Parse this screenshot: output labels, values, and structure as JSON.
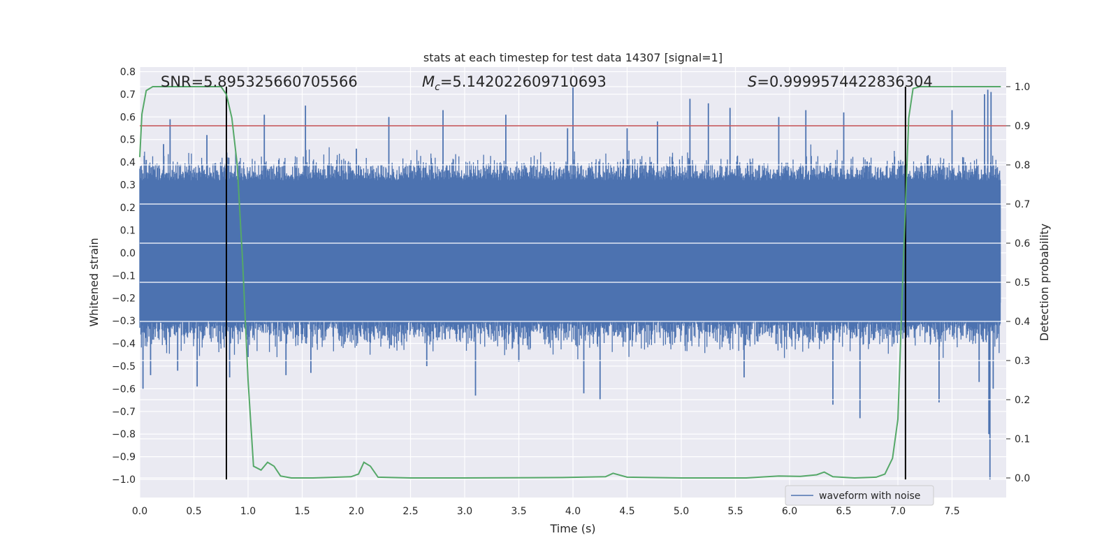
{
  "chart_data": {
    "type": "line",
    "title": "stats at each timestep for test data 14307 [signal=1]",
    "xlabel": "Time (s)",
    "ylabel": "Whitened strain",
    "y2label": "Detection probability",
    "xlim": [
      0.0,
      8.0
    ],
    "ylim": [
      -1.08,
      0.82
    ],
    "y2lim": [
      -0.05,
      1.05
    ],
    "xticks": [
      "0.0",
      "0.5",
      "1.0",
      "1.5",
      "2.0",
      "2.5",
      "3.0",
      "3.5",
      "4.0",
      "4.5",
      "5.0",
      "5.5",
      "6.0",
      "6.5",
      "7.0",
      "7.5"
    ],
    "yticks": [
      "0.8",
      "0.7",
      "0.6",
      "0.5",
      "0.4",
      "0.3",
      "0.2",
      "0.1",
      "0.0",
      "−0.1",
      "−0.2",
      "−0.3",
      "−0.4",
      "−0.5",
      "−0.6",
      "−0.7",
      "−0.8",
      "−0.9",
      "−1.0"
    ],
    "y2ticks": [
      "1.0",
      "0.9",
      "0.8",
      "0.7",
      "0.6",
      "0.5",
      "0.4",
      "0.3",
      "0.2",
      "0.1",
      "0.0"
    ],
    "grid": true,
    "legend_placement": "lower-right",
    "annotations": {
      "snr": "SNR=5.895325660705566",
      "mc_symbol": "M",
      "mc_sub": "c",
      "mc_value": "=5.142022609710693",
      "s_symbol": "S",
      "s_value": "=0.9999574422836304"
    },
    "series": [
      {
        "name": "waveform with noise",
        "color": "#4c72b0",
        "description_values": "dense noise signal; core band approx ±0.3, spikes up to 0.73 and down to -1.0",
        "spikes": [
          {
            "x": 0.03,
            "y": -0.6
          },
          {
            "x": 0.06,
            "y": 0.41
          },
          {
            "x": 0.1,
            "y": -0.54
          },
          {
            "x": 0.22,
            "y": 0.48
          },
          {
            "x": 0.28,
            "y": 0.59
          },
          {
            "x": 0.35,
            "y": -0.52
          },
          {
            "x": 0.53,
            "y": -0.59
          },
          {
            "x": 0.62,
            "y": 0.52
          },
          {
            "x": 0.83,
            "y": -0.55
          },
          {
            "x": 1.0,
            "y": -0.46
          },
          {
            "x": 1.15,
            "y": 0.61
          },
          {
            "x": 1.35,
            "y": -0.54
          },
          {
            "x": 1.53,
            "y": 0.65
          },
          {
            "x": 1.58,
            "y": -0.53
          },
          {
            "x": 2.0,
            "y": 0.46
          },
          {
            "x": 2.3,
            "y": 0.6
          },
          {
            "x": 2.65,
            "y": -0.5
          },
          {
            "x": 2.8,
            "y": 0.63
          },
          {
            "x": 3.1,
            "y": -0.63
          },
          {
            "x": 3.38,
            "y": 0.61
          },
          {
            "x": 3.5,
            "y": -0.48
          },
          {
            "x": 3.95,
            "y": 0.55
          },
          {
            "x": 4.0,
            "y": 0.73
          },
          {
            "x": 4.1,
            "y": -0.62
          },
          {
            "x": 4.25,
            "y": -0.65
          },
          {
            "x": 4.5,
            "y": 0.55
          },
          {
            "x": 4.78,
            "y": 0.58
          },
          {
            "x": 5.08,
            "y": 0.68
          },
          {
            "x": 5.25,
            "y": 0.66
          },
          {
            "x": 5.45,
            "y": 0.64
          },
          {
            "x": 5.58,
            "y": -0.55
          },
          {
            "x": 5.9,
            "y": 0.6
          },
          {
            "x": 6.15,
            "y": 0.63
          },
          {
            "x": 6.4,
            "y": -0.67
          },
          {
            "x": 6.5,
            "y": 0.62
          },
          {
            "x": 6.65,
            "y": -0.73
          },
          {
            "x": 7.38,
            "y": -0.66
          },
          {
            "x": 7.5,
            "y": 0.63
          },
          {
            "x": 7.75,
            "y": -0.57
          },
          {
            "x": 7.8,
            "y": 0.7
          },
          {
            "x": 7.83,
            "y": 0.72
          },
          {
            "x": 7.84,
            "y": -0.8
          },
          {
            "x": 7.85,
            "y": -1.0
          },
          {
            "x": 7.86,
            "y": 0.71
          },
          {
            "x": 7.88,
            "y": -0.6
          }
        ]
      },
      {
        "name": "",
        "color": "#55a868",
        "axis": "y2",
        "points": [
          [
            0.0,
            0.82
          ],
          [
            0.02,
            0.93
          ],
          [
            0.06,
            0.99
          ],
          [
            0.12,
            1.0
          ],
          [
            0.75,
            1.0
          ],
          [
            0.8,
            0.98
          ],
          [
            0.85,
            0.92
          ],
          [
            0.9,
            0.8
          ],
          [
            0.95,
            0.55
          ],
          [
            1.0,
            0.25
          ],
          [
            1.05,
            0.03
          ],
          [
            1.12,
            0.02
          ],
          [
            1.18,
            0.04
          ],
          [
            1.24,
            0.03
          ],
          [
            1.3,
            0.005
          ],
          [
            1.4,
            0.0
          ],
          [
            1.6,
            0.0
          ],
          [
            1.95,
            0.003
          ],
          [
            2.02,
            0.01
          ],
          [
            2.07,
            0.04
          ],
          [
            2.13,
            0.03
          ],
          [
            2.2,
            0.002
          ],
          [
            2.5,
            0.0
          ],
          [
            3.0,
            0.0
          ],
          [
            3.9,
            0.001
          ],
          [
            4.3,
            0.003
          ],
          [
            4.37,
            0.012
          ],
          [
            4.5,
            0.002
          ],
          [
            5.0,
            0.0
          ],
          [
            5.6,
            0.0
          ],
          [
            5.9,
            0.005
          ],
          [
            6.1,
            0.004
          ],
          [
            6.25,
            0.008
          ],
          [
            6.32,
            0.015
          ],
          [
            6.4,
            0.003
          ],
          [
            6.6,
            0.0
          ],
          [
            6.8,
            0.002
          ],
          [
            6.88,
            0.01
          ],
          [
            6.95,
            0.05
          ],
          [
            7.0,
            0.15
          ],
          [
            7.05,
            0.55
          ],
          [
            7.1,
            0.92
          ],
          [
            7.14,
            0.995
          ],
          [
            7.2,
            1.0
          ],
          [
            7.95,
            1.0
          ]
        ]
      }
    ],
    "hlines": [
      {
        "axis": "y2",
        "y": 0.9,
        "color": "#c44e52"
      }
    ],
    "vlines": [
      {
        "x": 0.8,
        "color": "#000000"
      },
      {
        "x": 7.07,
        "color": "#000000"
      }
    ]
  }
}
